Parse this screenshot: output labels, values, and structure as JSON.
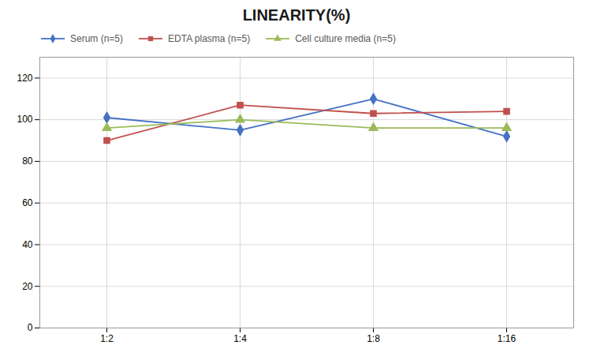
{
  "chart_data": {
    "type": "line",
    "title": "LINEARITY(%)",
    "categories": [
      "1:2",
      "1:4",
      "1:8",
      "1:16"
    ],
    "series": [
      {
        "name": "Serum (n=5)",
        "color": "#4472C4",
        "marker": "diamond",
        "values": [
          101,
          95,
          110,
          92
        ]
      },
      {
        "name": "EDTA plasma (n=5)",
        "color": "#C0504D",
        "marker": "square",
        "values": [
          90,
          107,
          103,
          104
        ]
      },
      {
        "name": "Cell culture media (n=5)",
        "color": "#9BBB59",
        "marker": "triangle",
        "values": [
          96,
          100,
          96,
          96
        ]
      }
    ],
    "ylim": [
      0,
      130
    ],
    "yticks": [
      0,
      20,
      40,
      60,
      80,
      100,
      120
    ],
    "grid": true,
    "legend": "upper left"
  }
}
